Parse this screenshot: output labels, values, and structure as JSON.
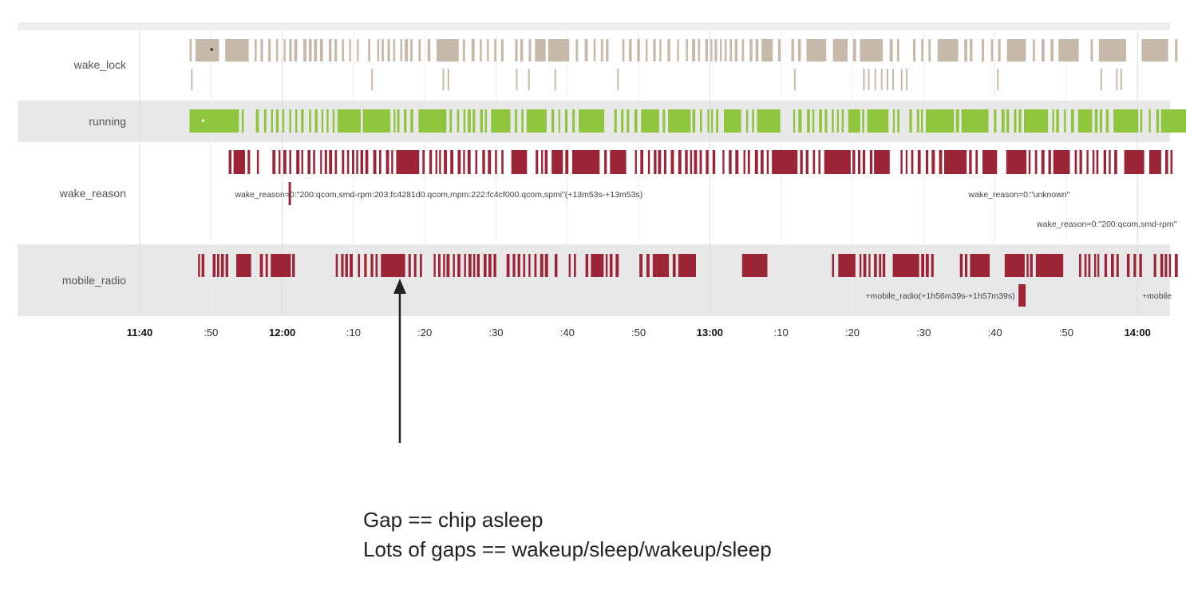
{
  "chart_data": {
    "type": "timeline",
    "rows": [
      {
        "name": "wake_lock",
        "color": "#c2b4a4"
      },
      {
        "name": "running",
        "color": "#8fc43d"
      },
      {
        "name": "wake_reason",
        "color": "#9c2437"
      },
      {
        "name": "mobile_radio",
        "color": "#9c2437"
      }
    ],
    "x_ticks": [
      {
        "label": "11:40",
        "minute": 0,
        "major": true
      },
      {
        "label": ":50",
        "minute": 10,
        "major": false
      },
      {
        "label": "12:00",
        "minute": 20,
        "major": true
      },
      {
        "label": ":10",
        "minute": 30,
        "major": false
      },
      {
        "label": ":20",
        "minute": 40,
        "major": false
      },
      {
        "label": ":30",
        "minute": 50,
        "major": false
      },
      {
        "label": ":40",
        "minute": 60,
        "major": false
      },
      {
        "label": ":50",
        "minute": 70,
        "major": false
      },
      {
        "label": "13:00",
        "minute": 80,
        "major": true
      },
      {
        "label": ":10",
        "minute": 90,
        "major": false
      },
      {
        "label": ":20",
        "minute": 100,
        "major": false
      },
      {
        "label": ":30",
        "minute": 110,
        "major": false
      },
      {
        "label": ":40",
        "minute": 120,
        "major": false
      },
      {
        "label": ":50",
        "minute": 130,
        "major": false
      },
      {
        "label": "14:00",
        "minute": 140,
        "major": true
      }
    ],
    "x_range_minutes": [
      0,
      145.5
    ],
    "row_annotations": [
      {
        "row": "wake_reason",
        "text": "wake_reason=0:\"200:qcom,smd-rpm:203:fc4281d0.qcom,mpm:222:fc4cf000.qcom,spmi\"(+13m53s-+13m53s)",
        "minute": 11.8
      },
      {
        "row": "wake_reason",
        "text": "wake_reason=0:\"unknown\"",
        "minute": 130.5
      },
      {
        "row": "wake_reason",
        "text": "wake_reason=0:\"200:qcom,smd-rpm\"",
        "minute": 145.5
      },
      {
        "row": "mobile_radio",
        "text": "+mobile_radio(+1h56m39s-+1h57m39s)",
        "minute": 122.8
      },
      {
        "row": "mobile_radio",
        "text": "+mobile",
        "minute": 144.8
      }
    ],
    "arrow_minute": 36.5,
    "annotation_lines": [
      "Gap == chip asleep",
      "Lots of gaps == wakeup/sleep/wakeup/sleep"
    ]
  }
}
